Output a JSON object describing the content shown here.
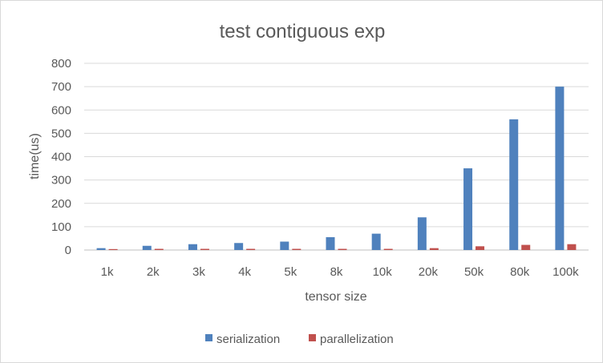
{
  "chart_data": {
    "type": "bar",
    "title": "test contiguous exp",
    "xlabel": "tensor size",
    "ylabel": "time(us)",
    "categories": [
      "1k",
      "2k",
      "3k",
      "4k",
      "5k",
      "8k",
      "10k",
      "20k",
      "50k",
      "80k",
      "100k"
    ],
    "series": [
      {
        "name": "serialization",
        "color": "#4f81bd",
        "values": [
          8,
          18,
          25,
          30,
          36,
          55,
          70,
          140,
          350,
          560,
          700
        ]
      },
      {
        "name": "parallelization",
        "color": "#c0504d",
        "values": [
          4,
          5,
          5,
          5,
          5,
          5,
          5,
          8,
          16,
          22,
          25
        ]
      }
    ],
    "ylim": [
      0,
      800
    ],
    "yticks": [
      0,
      100,
      200,
      300,
      400,
      500,
      600,
      700,
      800
    ],
    "grid": true,
    "legend_position": "bottom"
  }
}
